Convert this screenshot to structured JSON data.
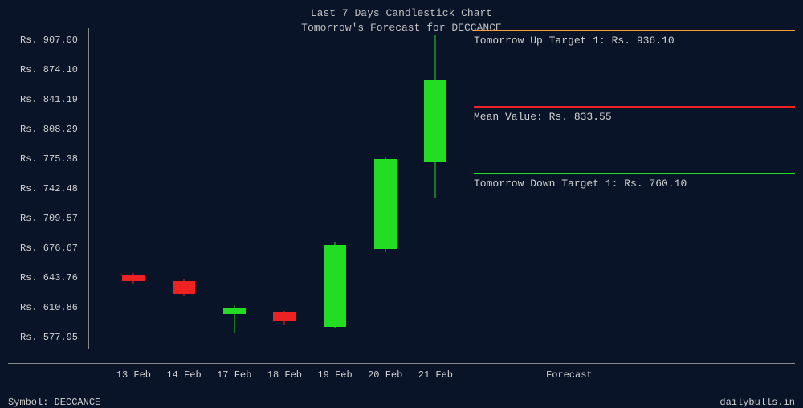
{
  "title1": "Last 7 Days Candlestick Chart",
  "title2": "Tomorrow's Forecast for DECCANCE",
  "symbol_label": "Symbol: DECCANCE",
  "site": "dailybulls.in",
  "forecast_label": "Forecast",
  "chart": {
    "type": "candlestick",
    "background_color": "#0a1428",
    "text_color": "#c0c0c0",
    "axis_color": "#888888",
    "up_color": "#22dd22",
    "down_color": "#ee2222",
    "y_min": 565,
    "y_max": 920,
    "candle_width": 28,
    "y_ticks": [
      {
        "label": "Rs. 907.00",
        "value": 907.0
      },
      {
        "label": "Rs. 874.10",
        "value": 874.1
      },
      {
        "label": "Rs. 841.19",
        "value": 841.19
      },
      {
        "label": "Rs. 808.29",
        "value": 808.29
      },
      {
        "label": "Rs. 775.38",
        "value": 775.38
      },
      {
        "label": "Rs. 742.48",
        "value": 742.48
      },
      {
        "label": "Rs. 709.57",
        "value": 709.57
      },
      {
        "label": "Rs. 676.67",
        "value": 676.67
      },
      {
        "label": "Rs. 643.76",
        "value": 643.76
      },
      {
        "label": "Rs. 610.86",
        "value": 610.86
      },
      {
        "label": "Rs. 577.95",
        "value": 577.95
      }
    ],
    "x_labels": [
      "13 Feb",
      "14 Feb",
      "17 Feb",
      "18 Feb",
      "19 Feb",
      "20 Feb",
      "21 Feb"
    ],
    "candles": [
      {
        "open": 647,
        "close": 640,
        "high": 649,
        "low": 638,
        "dir": "down"
      },
      {
        "open": 640,
        "close": 626,
        "high": 642,
        "low": 624,
        "dir": "down"
      },
      {
        "open": 604,
        "close": 610,
        "high": 614,
        "low": 583,
        "dir": "up"
      },
      {
        "open": 606,
        "close": 596,
        "high": 608,
        "low": 592,
        "dir": "down"
      },
      {
        "open": 590,
        "close": 680,
        "high": 684,
        "low": 588,
        "dir": "up"
      },
      {
        "open": 676,
        "close": 775,
        "high": 778,
        "low": 672,
        "dir": "up"
      },
      {
        "open": 772,
        "close": 862,
        "high": 912,
        "low": 732,
        "dir": "up"
      }
    ]
  },
  "targets": {
    "up": {
      "label": "Tomorrow Up Target 1: Rs. 936.10",
      "value": 936.1,
      "color": "#ff9933"
    },
    "mean": {
      "label": "Mean Value: Rs. 833.55",
      "value": 833.55,
      "color": "#ee2222"
    },
    "down": {
      "label": "Tomorrow Down Target 1: Rs. 760.10",
      "value": 760.1,
      "color": "#22dd22"
    }
  }
}
